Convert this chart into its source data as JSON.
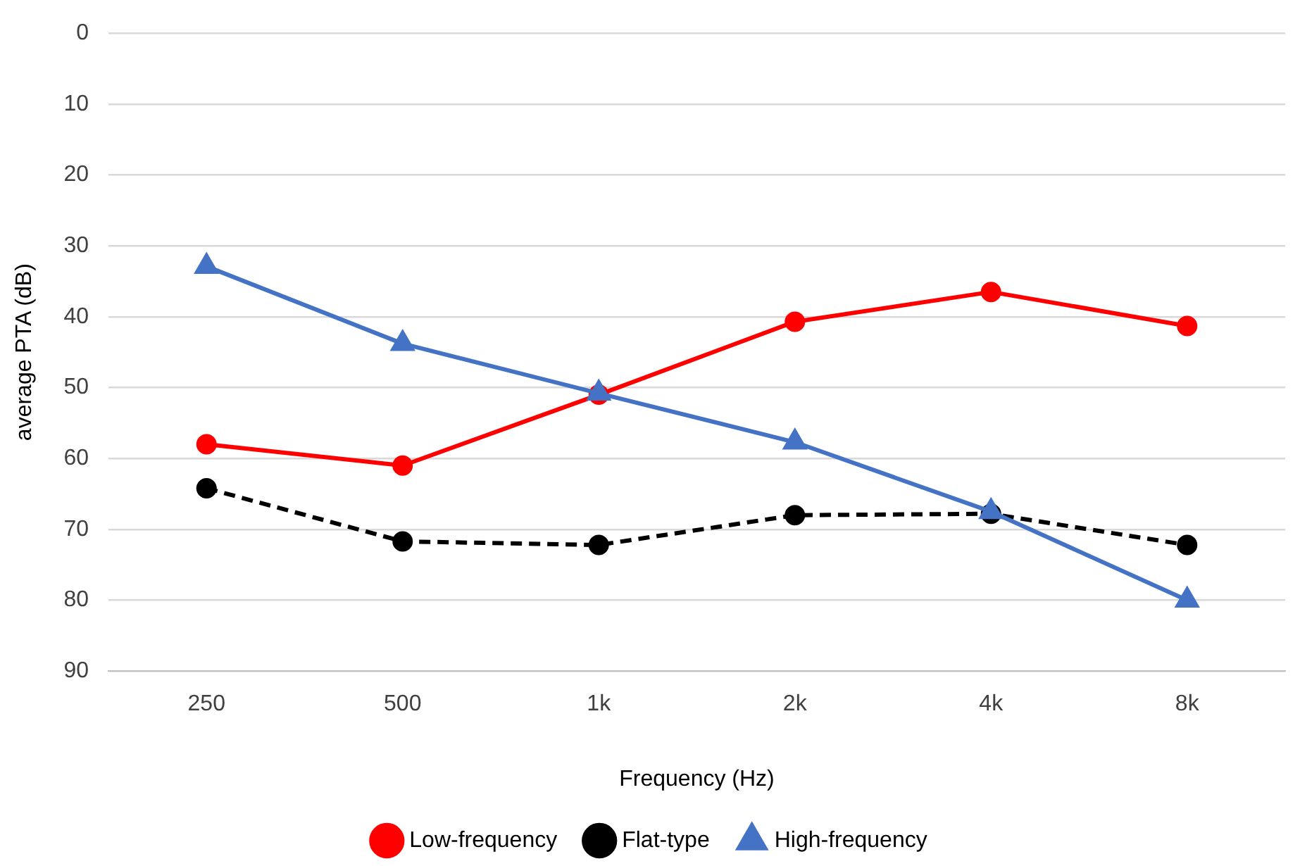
{
  "chart_data": {
    "type": "line",
    "xlabel": "Frequency (Hz)",
    "ylabel": "average PTA (dB)",
    "categories": [
      "250",
      "500",
      "1k",
      "2k",
      "4k",
      "8k"
    ],
    "series": [
      {
        "name": "Low-frequency",
        "color": "#ff0000",
        "marker": "circle",
        "line_style": "solid",
        "values": [
          58,
          61,
          51,
          40.7,
          36.5,
          41.3
        ]
      },
      {
        "name": "Flat-type",
        "color": "#000000",
        "marker": "circle",
        "line_style": "dashed",
        "values": [
          64.2,
          71.7,
          72.2,
          68,
          67.8,
          72.2
        ]
      },
      {
        "name": "High-frequency",
        "color": "#4472c4",
        "marker": "triangle",
        "line_style": "solid",
        "values": [
          32.9,
          43.8,
          50.8,
          57.7,
          67.5,
          80
        ]
      }
    ],
    "ylim": [
      90,
      0
    ],
    "yticks": [
      0,
      10,
      20,
      30,
      40,
      50,
      60,
      70,
      80,
      90
    ],
    "grid": "y",
    "legend": "bottom"
  }
}
